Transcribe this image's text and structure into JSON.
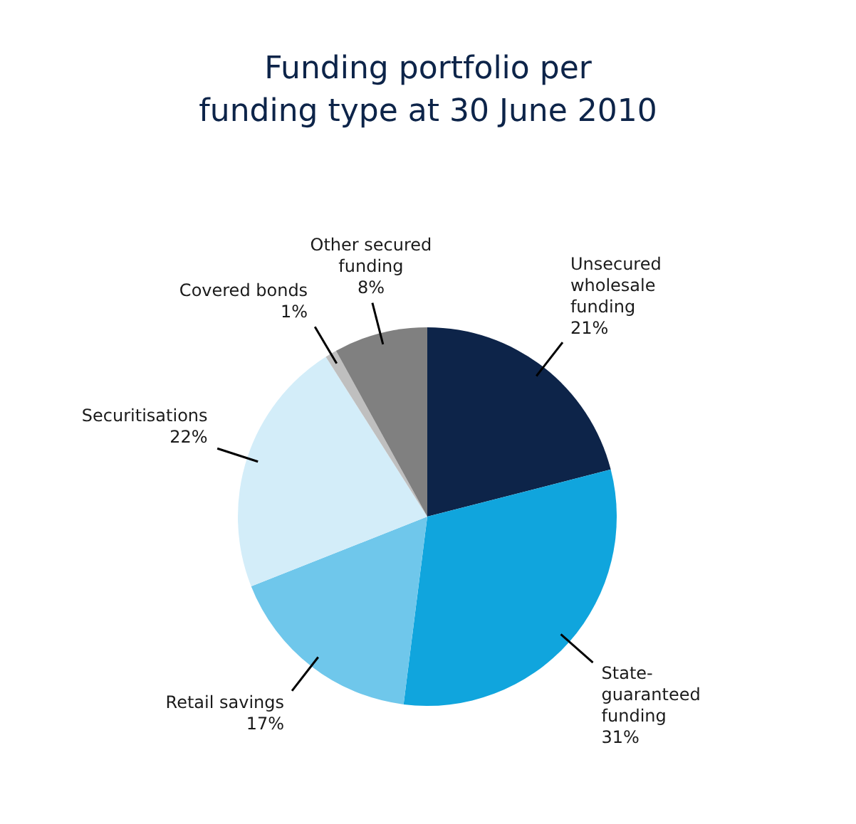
{
  "chart_data": {
    "type": "pie",
    "title": "Funding portfolio per funding type at 30 June 2010",
    "categories": [
      "Unsecured wholesale funding",
      "State-guaranteed funding",
      "Retail savings",
      "Securitisations",
      "Covered bonds",
      "Other secured funding"
    ],
    "values": [
      21,
      31,
      17,
      22,
      1,
      8
    ],
    "value_labels": [
      "21%",
      "31%",
      "17%",
      "22%",
      "1%",
      "8%"
    ],
    "colors": [
      "#0d2449",
      "#10a5dd",
      "#6fc7eb",
      "#d3edf9",
      "#bfbfbf",
      "#808080"
    ],
    "legend": false
  }
}
